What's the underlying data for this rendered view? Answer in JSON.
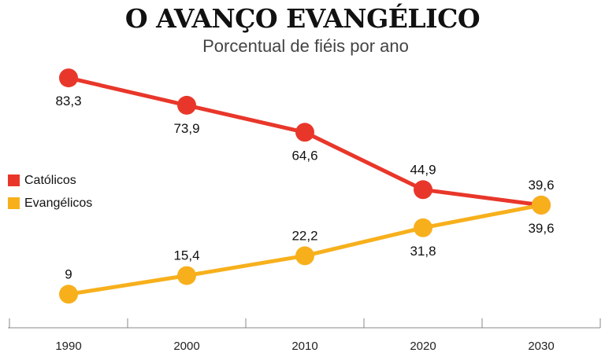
{
  "chart_data": {
    "type": "line",
    "title": "O AVANÇO EVANGÉLICO",
    "subtitle": "Porcentual de fiéis por ano",
    "categories": [
      "1990",
      "2000",
      "2010",
      "2020",
      "2030"
    ],
    "series": [
      {
        "name": "Católicos",
        "color": "#e8372a",
        "values": [
          83.3,
          73.9,
          64.6,
          44.9,
          39.6
        ],
        "labels": [
          "83,3",
          "73,9",
          "64,6",
          "44,9",
          "39,6"
        ]
      },
      {
        "name": "Evangélicos",
        "color": "#f7b01c",
        "values": [
          9,
          15.4,
          22.2,
          31.8,
          39.6
        ],
        "labels": [
          "9",
          "15,4",
          "22,2",
          "31,8",
          "39,6"
        ]
      }
    ],
    "legend_position": "left",
    "grid": false
  }
}
